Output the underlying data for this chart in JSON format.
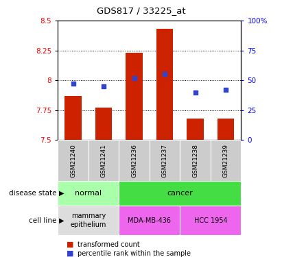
{
  "title": "GDS817 / 33225_at",
  "samples": [
    "GSM21240",
    "GSM21241",
    "GSM21236",
    "GSM21237",
    "GSM21238",
    "GSM21239"
  ],
  "bar_values": [
    7.87,
    7.77,
    8.23,
    8.43,
    7.68,
    7.68
  ],
  "bar_base": 7.5,
  "blue_values_pct": [
    47,
    45,
    52,
    55,
    40,
    42
  ],
  "ylim": [
    7.5,
    8.5
  ],
  "ylim_right": [
    0,
    100
  ],
  "yticks_left": [
    7.5,
    7.75,
    8.0,
    8.25,
    8.5
  ],
  "yticks_left_labels": [
    "7.5",
    "7.75",
    "8",
    "8.25",
    "8.5"
  ],
  "yticks_right": [
    0,
    25,
    50,
    75,
    100
  ],
  "yticks_right_labels": [
    "0",
    "25",
    "50",
    "75",
    "100%"
  ],
  "grid_values": [
    7.75,
    8.0,
    8.25
  ],
  "bar_color": "#CC2200",
  "blue_color": "#3344CC",
  "color_normal_light": "#AAFFAA",
  "color_cancer_green": "#44DD44",
  "color_cell_normal": "#DDDDDD",
  "color_cell_pink": "#EE66EE",
  "color_sample_gray": "#CCCCCC",
  "bar_width": 0.55
}
